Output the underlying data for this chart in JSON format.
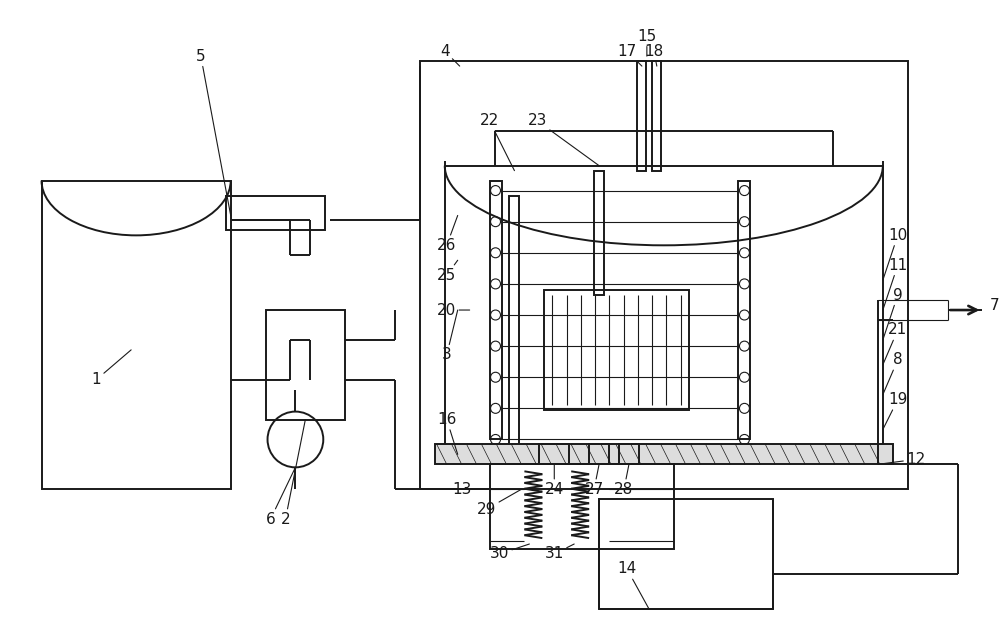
{
  "bg_color": "#ffffff",
  "line_color": "#1a1a1a",
  "lw": 1.4,
  "tlw": 0.8,
  "fs": 11,
  "fig_w": 10.0,
  "fig_h": 6.35
}
